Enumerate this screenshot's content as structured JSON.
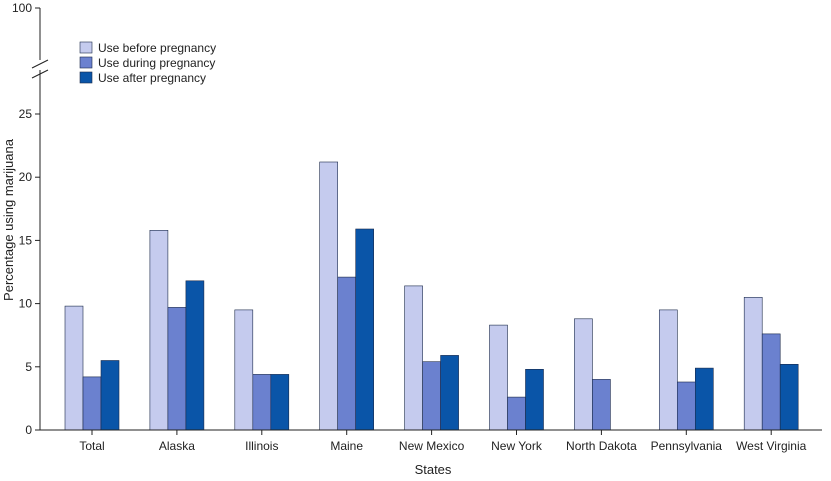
{
  "chart_data": {
    "type": "bar",
    "title": "",
    "xlabel": "States",
    "ylabel": "Percentage using marijuana",
    "ylim": [
      0,
      25
    ],
    "y_ticks": [
      0,
      5,
      10,
      15,
      20,
      25
    ],
    "y_break_top_label": "100",
    "grid": false,
    "legend_position": "top-left",
    "categories": [
      "Total",
      "Alaska",
      "Illinois",
      "Maine",
      "New Mexico",
      "New York",
      "North Dakota",
      "Pennsylvania",
      "West Virginia"
    ],
    "series": [
      {
        "name": "Use before pregnancy",
        "color": "#c5cbee",
        "values": [
          9.8,
          15.8,
          9.5,
          21.2,
          11.4,
          8.3,
          8.8,
          9.5,
          10.5
        ]
      },
      {
        "name": "Use during pregnancy",
        "color": "#6b81cf",
        "values": [
          4.2,
          9.7,
          4.4,
          12.1,
          5.4,
          2.6,
          4.0,
          3.8,
          7.6
        ]
      },
      {
        "name": "Use after pregnancy",
        "color": "#0a55a8",
        "values": [
          5.5,
          11.8,
          4.4,
          15.9,
          5.9,
          4.8,
          null,
          4.9,
          5.2
        ]
      }
    ]
  }
}
